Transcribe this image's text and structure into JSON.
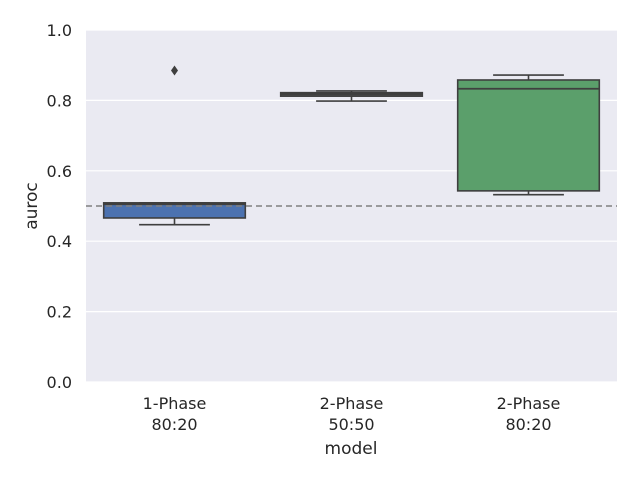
{
  "chart_data": {
    "type": "box",
    "xlabel": "model",
    "ylabel": "auroc",
    "ylim": [
      0.0,
      1.0
    ],
    "yticks": [
      "0.0",
      "0.2",
      "0.4",
      "0.6",
      "0.8",
      "1.0"
    ],
    "grid": true,
    "reference_line": {
      "y": 0.5,
      "style": "dashed"
    },
    "categories": [
      {
        "label_line1": "1-Phase",
        "label_line2": "80:20",
        "color": "#4c72b0",
        "whisker_low": 0.447,
        "q1": 0.466,
        "median": 0.505,
        "q3": 0.509,
        "whisker_high": 0.509,
        "outliers": [
          0.885
        ]
      },
      {
        "label_line1": "2-Phase",
        "label_line2": "50:50",
        "color": "#55a868",
        "whisker_low": 0.798,
        "q1": 0.812,
        "median": 0.818,
        "q3": 0.822,
        "whisker_high": 0.827,
        "outliers": []
      },
      {
        "label_line1": "2-Phase",
        "label_line2": "80:20",
        "color": "#c44e52",
        "whisker_low": 0.532,
        "q1": 0.543,
        "median": 0.833,
        "q3": 0.858,
        "whisker_high": 0.872,
        "outliers": []
      }
    ],
    "colors": {
      "background": "#eaeaf2",
      "grid": "#ffffff",
      "box_edge": "#3f3f3f",
      "box_fill_1": "#4c72b0",
      "box_fill_2": "#4c4c4c",
      "box_fill_3": "#5b9f6b",
      "reference_line": "#808080"
    }
  }
}
